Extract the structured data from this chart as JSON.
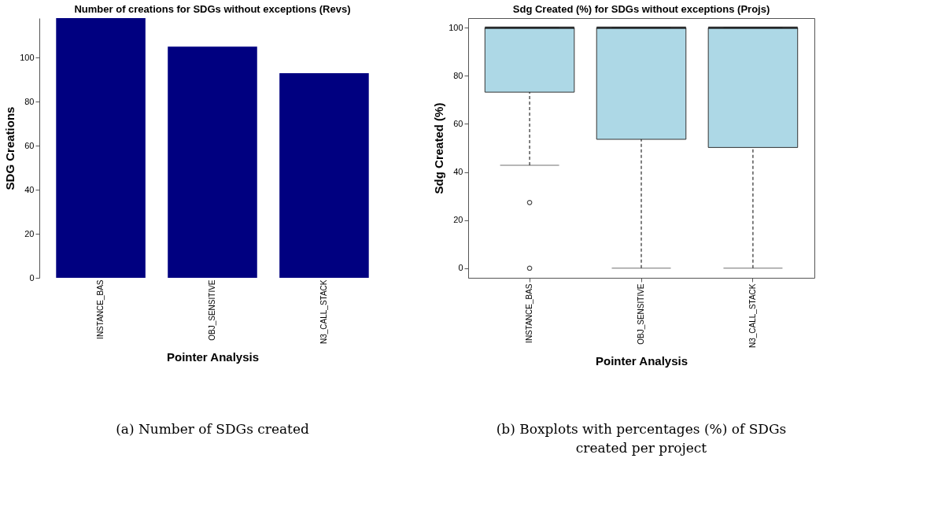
{
  "chart_data": [
    {
      "type": "bar",
      "title": "Number of creations for SDGs without exceptions (Revs)",
      "xlabel": "Pointer Analysis",
      "ylabel": "SDG Creations",
      "categories": [
        "INSTANCE_BAS",
        "OBJ_SENSITIVE",
        "N3_CALL_STACK"
      ],
      "values": [
        118,
        105,
        93
      ],
      "color": "#000080",
      "ylim": [
        0,
        118
      ],
      "yticks": [
        0,
        20,
        40,
        60,
        80,
        100
      ],
      "grid": false,
      "annotations": [
        "(a) Number of SDGs created"
      ]
    },
    {
      "type": "box",
      "title": "Sdg Created (%) for SDGs without exceptions (Projs)",
      "xlabel": "Pointer Analysis",
      "ylabel": "Sdg Created (%)",
      "categories": [
        "INSTANCE_BAS",
        "OBJ_SENSITIVE",
        "N3_CALL_STACK"
      ],
      "series": [
        {
          "color": "#add8e6",
          "boxes": [
            {
              "low": 42.8,
              "q1": 73.2,
              "median": 100,
              "q3": 100,
              "high": 100,
              "outliers": [
                27.3,
                0
              ]
            },
            {
              "low": 0,
              "q1": 53.6,
              "median": 100,
              "q3": 100,
              "high": 100
            },
            {
              "low": 0,
              "q1": 50.2,
              "median": 100,
              "q3": 100,
              "high": 100
            }
          ]
        }
      ],
      "ylim": [
        -4,
        104
      ],
      "yticks": [
        0,
        20,
        40,
        60,
        80,
        100
      ],
      "grid": false,
      "annotations": [
        "(b) Boxplots with percentages (%) of SDGs created per project"
      ]
    }
  ]
}
